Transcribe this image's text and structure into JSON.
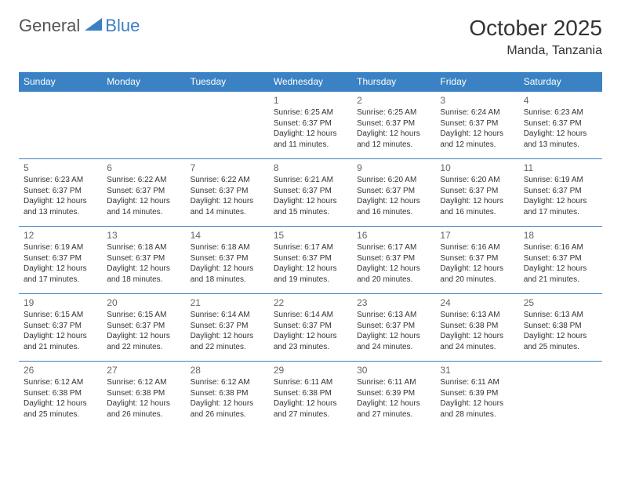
{
  "logo": {
    "general": "General",
    "blue": "Blue"
  },
  "title": "October 2025",
  "location": "Manda, Tanzania",
  "colors": {
    "headerBg": "#3b82c4",
    "headerText": "#ffffff",
    "borderColor": "#3b82c4",
    "dayNum": "#666666",
    "detailText": "#333333",
    "logoBlue": "#3b7fc4",
    "logoGray": "#555555"
  },
  "weekdays": [
    "Sunday",
    "Monday",
    "Tuesday",
    "Wednesday",
    "Thursday",
    "Friday",
    "Saturday"
  ],
  "weeks": [
    [
      null,
      null,
      null,
      {
        "n": "1",
        "sr": "6:25 AM",
        "ss": "6:37 PM",
        "dl": "12 hours and 11 minutes."
      },
      {
        "n": "2",
        "sr": "6:25 AM",
        "ss": "6:37 PM",
        "dl": "12 hours and 12 minutes."
      },
      {
        "n": "3",
        "sr": "6:24 AM",
        "ss": "6:37 PM",
        "dl": "12 hours and 12 minutes."
      },
      {
        "n": "4",
        "sr": "6:23 AM",
        "ss": "6:37 PM",
        "dl": "12 hours and 13 minutes."
      }
    ],
    [
      {
        "n": "5",
        "sr": "6:23 AM",
        "ss": "6:37 PM",
        "dl": "12 hours and 13 minutes."
      },
      {
        "n": "6",
        "sr": "6:22 AM",
        "ss": "6:37 PM",
        "dl": "12 hours and 14 minutes."
      },
      {
        "n": "7",
        "sr": "6:22 AM",
        "ss": "6:37 PM",
        "dl": "12 hours and 14 minutes."
      },
      {
        "n": "8",
        "sr": "6:21 AM",
        "ss": "6:37 PM",
        "dl": "12 hours and 15 minutes."
      },
      {
        "n": "9",
        "sr": "6:20 AM",
        "ss": "6:37 PM",
        "dl": "12 hours and 16 minutes."
      },
      {
        "n": "10",
        "sr": "6:20 AM",
        "ss": "6:37 PM",
        "dl": "12 hours and 16 minutes."
      },
      {
        "n": "11",
        "sr": "6:19 AM",
        "ss": "6:37 PM",
        "dl": "12 hours and 17 minutes."
      }
    ],
    [
      {
        "n": "12",
        "sr": "6:19 AM",
        "ss": "6:37 PM",
        "dl": "12 hours and 17 minutes."
      },
      {
        "n": "13",
        "sr": "6:18 AM",
        "ss": "6:37 PM",
        "dl": "12 hours and 18 minutes."
      },
      {
        "n": "14",
        "sr": "6:18 AM",
        "ss": "6:37 PM",
        "dl": "12 hours and 18 minutes."
      },
      {
        "n": "15",
        "sr": "6:17 AM",
        "ss": "6:37 PM",
        "dl": "12 hours and 19 minutes."
      },
      {
        "n": "16",
        "sr": "6:17 AM",
        "ss": "6:37 PM",
        "dl": "12 hours and 20 minutes."
      },
      {
        "n": "17",
        "sr": "6:16 AM",
        "ss": "6:37 PM",
        "dl": "12 hours and 20 minutes."
      },
      {
        "n": "18",
        "sr": "6:16 AM",
        "ss": "6:37 PM",
        "dl": "12 hours and 21 minutes."
      }
    ],
    [
      {
        "n": "19",
        "sr": "6:15 AM",
        "ss": "6:37 PM",
        "dl": "12 hours and 21 minutes."
      },
      {
        "n": "20",
        "sr": "6:15 AM",
        "ss": "6:37 PM",
        "dl": "12 hours and 22 minutes."
      },
      {
        "n": "21",
        "sr": "6:14 AM",
        "ss": "6:37 PM",
        "dl": "12 hours and 22 minutes."
      },
      {
        "n": "22",
        "sr": "6:14 AM",
        "ss": "6:37 PM",
        "dl": "12 hours and 23 minutes."
      },
      {
        "n": "23",
        "sr": "6:13 AM",
        "ss": "6:37 PM",
        "dl": "12 hours and 24 minutes."
      },
      {
        "n": "24",
        "sr": "6:13 AM",
        "ss": "6:38 PM",
        "dl": "12 hours and 24 minutes."
      },
      {
        "n": "25",
        "sr": "6:13 AM",
        "ss": "6:38 PM",
        "dl": "12 hours and 25 minutes."
      }
    ],
    [
      {
        "n": "26",
        "sr": "6:12 AM",
        "ss": "6:38 PM",
        "dl": "12 hours and 25 minutes."
      },
      {
        "n": "27",
        "sr": "6:12 AM",
        "ss": "6:38 PM",
        "dl": "12 hours and 26 minutes."
      },
      {
        "n": "28",
        "sr": "6:12 AM",
        "ss": "6:38 PM",
        "dl": "12 hours and 26 minutes."
      },
      {
        "n": "29",
        "sr": "6:11 AM",
        "ss": "6:38 PM",
        "dl": "12 hours and 27 minutes."
      },
      {
        "n": "30",
        "sr": "6:11 AM",
        "ss": "6:39 PM",
        "dl": "12 hours and 27 minutes."
      },
      {
        "n": "31",
        "sr": "6:11 AM",
        "ss": "6:39 PM",
        "dl": "12 hours and 28 minutes."
      },
      null
    ]
  ],
  "labels": {
    "sunrise": "Sunrise:",
    "sunset": "Sunset:",
    "daylight": "Daylight:"
  }
}
